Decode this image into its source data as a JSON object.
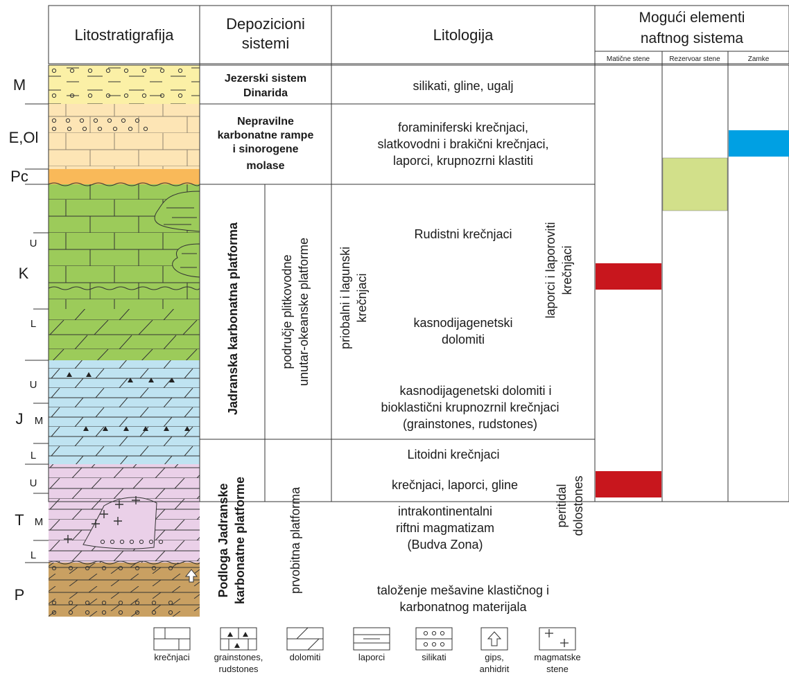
{
  "headers": {
    "lithostratigraphy": "Litostratigrafija",
    "depositional_line1": "Depozicioni",
    "depositional_line2": "sistemi",
    "lithology": "Litologija",
    "petroleum_line1": "Mogući elementi",
    "petroleum_line2": "naftnog sistema",
    "source_rock": "Matične stene",
    "reservoir_rock": "Rezervoar stene",
    "traps": "Zamke"
  },
  "periods": [
    {
      "label": "M"
    },
    {
      "label": "E,Ol"
    },
    {
      "label": "Pc"
    },
    {
      "label": "U"
    },
    {
      "label": "K"
    },
    {
      "label": "L"
    },
    {
      "label": "U"
    },
    {
      "label": "J"
    },
    {
      "label": "M"
    },
    {
      "label": "L"
    },
    {
      "label": "U"
    },
    {
      "label": "T"
    },
    {
      "label": "M"
    },
    {
      "label": "L"
    },
    {
      "label": "P"
    }
  ],
  "depositional_systems": {
    "lake_line1": "Jezerski sistem",
    "lake_line2": "Dinarida",
    "ramp_line1": "Nepravilne",
    "ramp_line2": "karbonatne rampe",
    "ramp_line3": "i sinorogene",
    "ramp_line4": "molase",
    "adriatic_platform": "Jadranska karbonatna platforma",
    "shallow_line1": "područje plitkovodne",
    "shallow_line2": "unutar-okeanske platforme",
    "basement_line1": "Podloga Jadranske",
    "basement_line2": "karbonatne platforme",
    "primary_platform": "prvobitna platforma"
  },
  "lithology": {
    "miocene": "silikati, gline, ugalj",
    "eocene_line1": "foraminiferski krečnjaci,",
    "eocene_line2": "slatkovodni i brakični krečnjaci,",
    "eocene_line3": "laporci, krupnozrni klastiti",
    "coastal_line1": "priobalni i lagunski",
    "coastal_line2": "krečnjaci",
    "rudist": "Rudistni krečnjaci",
    "marly_line1": "laporci i laporoviti",
    "marly_line2": "krečnjaci",
    "late_dolo_line1": "kasnodijagenetski",
    "late_dolo_line2": "dolomiti",
    "jur_line1": "kasnodijagenetski dolomiti i",
    "jur_line2": "bioklastični krupnozrnil krečnjaci",
    "jur_line3": "(grainstones, rudstones)",
    "lithoid": "Litoidni krečnjaci",
    "limestones_marls": "krečnjaci, laporci, gline",
    "rift_line1": "intrakontinentalni",
    "rift_line2": "riftni magmatizam",
    "rift_line3": "(Budva Zona)",
    "peritidal_line1": "peritidal",
    "peritidal_line2": "dolostones",
    "perm_line1": "taloženje mešavine klastičnog i",
    "perm_line2": "karbonatnog materijala"
  },
  "petroleum_elements": [
    {
      "element": "source rock",
      "interval": "Cretaceous (K)",
      "color": "#c8161d"
    },
    {
      "element": "source rock",
      "interval": "Upper Triassic",
      "color": "#c8161d"
    },
    {
      "element": "reservoir rock",
      "interval": "Paleocene – Upper Cretaceous",
      "color": "#d2e08a"
    },
    {
      "element": "trap",
      "interval": "Eocene–Oligocene",
      "color": "#00a0e3"
    }
  ],
  "legend": [
    {
      "icon": "limestone-pattern-icon",
      "line1": "krečnjaci",
      "line2": ""
    },
    {
      "icon": "grainstone-pattern-icon",
      "line1": "grainstones,",
      "line2": "rudstones"
    },
    {
      "icon": "dolomite-pattern-icon",
      "line1": "dolomiti",
      "line2": ""
    },
    {
      "icon": "marl-pattern-icon",
      "line1": "laporci",
      "line2": ""
    },
    {
      "icon": "siliciclastic-pattern-icon",
      "line1": "silikati",
      "line2": ""
    },
    {
      "icon": "gypsum-arrow-icon",
      "line1": "gips,",
      "line2": "anhidrit"
    },
    {
      "icon": "magmatic-cross-icon",
      "line1": "magmatske",
      "line2": "stene"
    }
  ],
  "colors": {
    "miocene": "#fbf0a6",
    "eocene": "#fde5b5",
    "paleocene": "#f9b959",
    "cretaceous": "#9ccb5a",
    "jurassic": "#bfe3f1",
    "triassic": "#ead0e8",
    "permian": "#c9a062",
    "source": "#c8161d",
    "reservoir": "#d2e08a",
    "trap": "#00a0e3"
  }
}
